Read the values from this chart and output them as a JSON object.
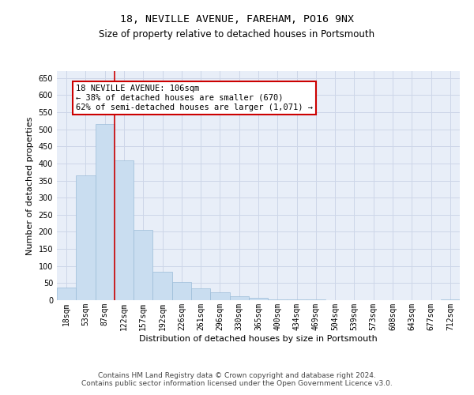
{
  "title": "18, NEVILLE AVENUE, FAREHAM, PO16 9NX",
  "subtitle": "Size of property relative to detached houses in Portsmouth",
  "xlabel": "Distribution of detached houses by size in Portsmouth",
  "ylabel": "Number of detached properties",
  "categories": [
    "18sqm",
    "53sqm",
    "87sqm",
    "122sqm",
    "157sqm",
    "192sqm",
    "226sqm",
    "261sqm",
    "296sqm",
    "330sqm",
    "365sqm",
    "400sqm",
    "434sqm",
    "469sqm",
    "504sqm",
    "539sqm",
    "573sqm",
    "608sqm",
    "643sqm",
    "677sqm",
    "712sqm"
  ],
  "bar_values": [
    37,
    365,
    515,
    408,
    205,
    83,
    53,
    35,
    22,
    12,
    8,
    2,
    2,
    2,
    1,
    1,
    0,
    1,
    0,
    0,
    3
  ],
  "bar_color": "#c9ddf0",
  "bar_edge_color": "#9bbcd8",
  "red_line_color": "#cc0000",
  "annotation_text": "18 NEVILLE AVENUE: 106sqm\n← 38% of detached houses are smaller (670)\n62% of semi-detached houses are larger (1,071) →",
  "annotation_box_color": "#ffffff",
  "annotation_box_edge_color": "#cc0000",
  "grid_color": "#cdd6e8",
  "background_color": "#e8eef8",
  "ylim": [
    0,
    670
  ],
  "yticks": [
    0,
    50,
    100,
    150,
    200,
    250,
    300,
    350,
    400,
    450,
    500,
    550,
    600,
    650
  ],
  "footer_text": "Contains HM Land Registry data © Crown copyright and database right 2024.\nContains public sector information licensed under the Open Government Licence v3.0.",
  "title_fontsize": 9.5,
  "subtitle_fontsize": 8.5,
  "xlabel_fontsize": 8,
  "ylabel_fontsize": 8,
  "tick_fontsize": 7,
  "annotation_fontsize": 7.5,
  "footer_fontsize": 6.5
}
